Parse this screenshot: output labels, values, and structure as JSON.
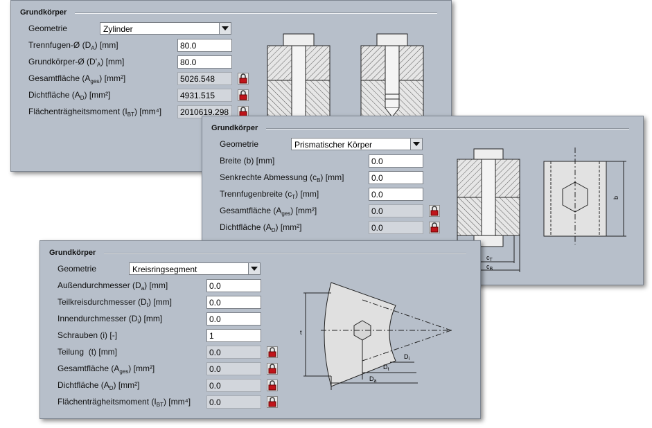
{
  "panels": [
    {
      "title": "Grundkörper",
      "geometry_label": "Geometrie",
      "geometry": "Zylinder",
      "fields": [
        {
          "label": [
            "Trennfugen-Ø (D",
            "A",
            ") [mm]"
          ],
          "value": "80.0",
          "locked": false
        },
        {
          "label": [
            "Grundkörper-Ø (D'",
            "A",
            ") [mm]"
          ],
          "value": "80.0",
          "locked": false
        },
        {
          "label": [
            "Gesamtfläche (A",
            "ges",
            ") [mm²]"
          ],
          "value": "5026.548",
          "locked": true
        },
        {
          "label": [
            "Dichtfläche (A",
            "D",
            ") [mm²]"
          ],
          "value": "4931.515",
          "locked": true
        },
        {
          "label": [
            "Flächenträgheitsmoment (I",
            "BT",
            ") [mm⁴]"
          ],
          "value": "2010619.298",
          "locked": true
        }
      ]
    },
    {
      "title": "Grundkörper",
      "geometry_label": "Geometrie",
      "geometry": "Prismatischer Körper",
      "fields": [
        {
          "label": [
            "Breite (b) [mm]"
          ],
          "value": "0.0",
          "locked": false
        },
        {
          "label": [
            "Senkrechte Abmessung (c",
            "B",
            ") [mm]"
          ],
          "value": "0.0",
          "locked": false
        },
        {
          "label": [
            "Trennfugenbreite (c",
            "T",
            ") [mm]"
          ],
          "value": "0.0",
          "locked": false
        },
        {
          "label": [
            "Gesamtfläche (A",
            "ges",
            ") [mm²]"
          ],
          "value": "0.0",
          "locked": true
        },
        {
          "label": [
            "Dichtfläche (A",
            "D",
            ") [mm²]"
          ],
          "value": "0.0",
          "locked": true
        }
      ],
      "drawing_labels": [
        [
          "b"
        ],
        [
          "c",
          "T"
        ],
        [
          "c",
          "B"
        ]
      ]
    },
    {
      "title": "Grundkörper",
      "geometry_label": "Geometrie",
      "geometry": "Kreisringsegment",
      "fields": [
        {
          "label": [
            "Außendurchmesser (D",
            "a",
            ") [mm]"
          ],
          "value": "0.0",
          "locked": false
        },
        {
          "label": [
            "Teilkreisdurchmesser (D",
            "t",
            ") [mm]"
          ],
          "value": "0.0",
          "locked": false
        },
        {
          "label": [
            "Innendurchmesser (D",
            "i",
            ") [mm]"
          ],
          "value": "0.0",
          "locked": false
        },
        {
          "label": [
            "Schrauben (i) [-]"
          ],
          "value": "1",
          "locked": false
        },
        {
          "label": [
            "Teilung  (t) [mm]"
          ],
          "value": "0.0",
          "locked": true
        },
        {
          "label": [
            "Gesamtfläche (A",
            "ges",
            ") [mm²]"
          ],
          "value": "0.0",
          "locked": true
        },
        {
          "label": [
            "Dichtfläche (A",
            "D",
            ") [mm²]"
          ],
          "value": "0.0",
          "locked": true
        },
        {
          "label": [
            "Flächenträgheitsmoment (I",
            "BT",
            ") [mm⁴]"
          ],
          "value": "0.0",
          "locked": true
        }
      ],
      "drawing_labels": [
        [
          "t"
        ],
        [
          "D",
          "i"
        ],
        [
          "D",
          "t"
        ],
        [
          "D",
          "a"
        ]
      ]
    }
  ]
}
